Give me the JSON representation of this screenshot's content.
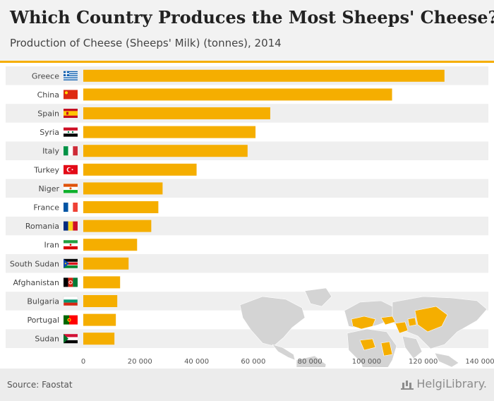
{
  "header": {
    "title": "Which Country Produces the Most Sheeps' Cheese?",
    "subtitle": "Production of Cheese (Sheeps' Milk) (tonnes), 2014"
  },
  "footer": {
    "source": "Source: Faostat",
    "brand": "HelgiLibrary."
  },
  "colors": {
    "bar": "#f5ae00",
    "row_alt": "#efefef",
    "map_land": "#d4d4d4",
    "map_highlight": "#f5ae00"
  },
  "chart_data": {
    "type": "bar",
    "orientation": "horizontal",
    "title": "Which Country Produces the Most Sheeps' Cheese?",
    "subtitle": "Production of Cheese (Sheeps' Milk) (tonnes), 2014",
    "xlabel": "",
    "ylabel": "",
    "xlim": [
      0,
      140000
    ],
    "ticks": [
      0,
      20000,
      40000,
      60000,
      80000,
      100000,
      120000,
      140000
    ],
    "tick_labels": [
      "0",
      "20 000",
      "40 000",
      "60 000",
      "80 000",
      "100 000",
      "120 000",
      "140 000"
    ],
    "categories": [
      "Greece",
      "China",
      "Spain",
      "Syria",
      "Italy",
      "Turkey",
      "Niger",
      "France",
      "Romania",
      "Iran",
      "South Sudan",
      "Afghanistan",
      "Bulgaria",
      "Portugal",
      "Sudan"
    ],
    "flags": [
      "greece-flag",
      "china-flag",
      "spain-flag",
      "syria-flag",
      "italy-flag",
      "turkey-flag",
      "niger-flag",
      "france-flag",
      "romania-flag",
      "iran-flag",
      "south-sudan-flag",
      "afghanistan-flag",
      "bulgaria-flag",
      "portugal-flag",
      "sudan-flag"
    ],
    "values": [
      127500,
      109000,
      66000,
      60800,
      58000,
      40000,
      28000,
      26500,
      24000,
      19000,
      16000,
      13000,
      12000,
      11500,
      11000
    ]
  }
}
